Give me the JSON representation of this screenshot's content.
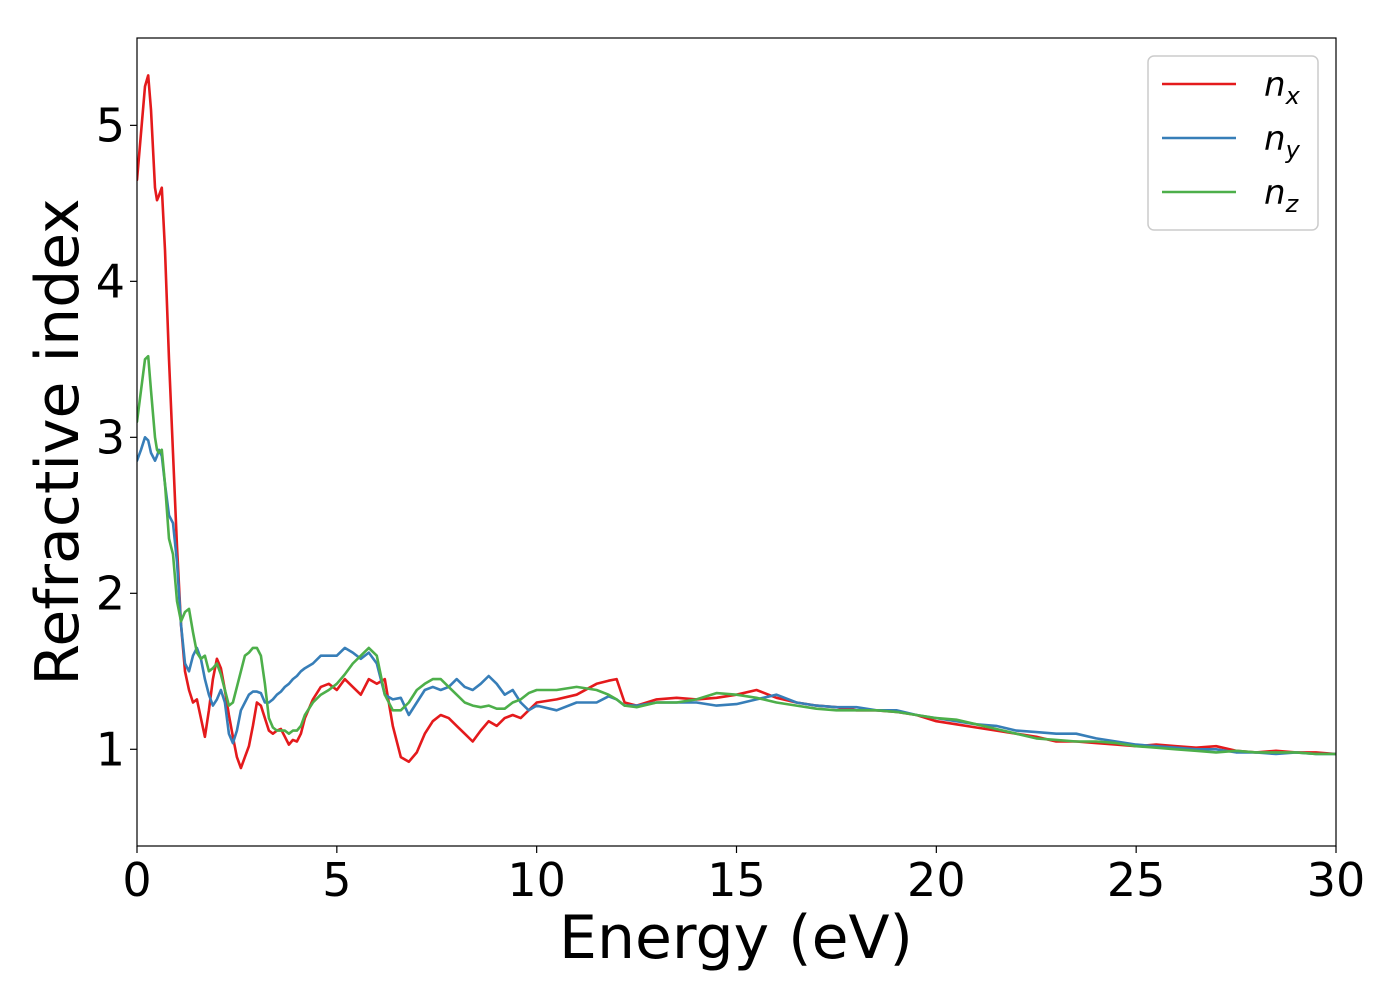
{
  "chart_data": {
    "type": "line",
    "title": "",
    "xlabel": "Energy (eV)",
    "ylabel": "Refractive index",
    "xlim": [
      0,
      30
    ],
    "ylim": [
      0.38,
      5.56
    ],
    "xticks": [
      0,
      5,
      10,
      15,
      20,
      25,
      30
    ],
    "yticks": [
      1,
      2,
      3,
      4,
      5
    ],
    "grid": false,
    "legend_position": "top-right",
    "series": [
      {
        "name": "n",
        "subscript": "x",
        "color": "#e41a1c",
        "x": [
          0,
          0.1,
          0.2,
          0.28,
          0.35,
          0.45,
          0.5,
          0.55,
          0.62,
          0.7,
          0.8,
          0.9,
          1.0,
          1.1,
          1.2,
          1.3,
          1.4,
          1.5,
          1.6,
          1.7,
          1.8,
          1.9,
          2.0,
          2.1,
          2.2,
          2.3,
          2.4,
          2.5,
          2.6,
          2.7,
          2.8,
          2.9,
          3.0,
          3.1,
          3.2,
          3.3,
          3.4,
          3.5,
          3.6,
          3.7,
          3.8,
          3.9,
          4.0,
          4.1,
          4.2,
          4.4,
          4.6,
          4.8,
          5.0,
          5.2,
          5.4,
          5.6,
          5.8,
          6.0,
          6.2,
          6.4,
          6.6,
          6.8,
          7.0,
          7.2,
          7.4,
          7.6,
          7.8,
          8.0,
          8.2,
          8.4,
          8.6,
          8.8,
          9.0,
          9.2,
          9.4,
          9.6,
          9.8,
          10.0,
          10.5,
          11.0,
          11.5,
          11.8,
          12.0,
          12.2,
          12.5,
          13.0,
          13.5,
          14.0,
          14.5,
          15.0,
          15.5,
          16.0,
          16.5,
          17.0,
          17.5,
          18.0,
          18.5,
          19.0,
          19.5,
          20.0,
          20.5,
          21.0,
          21.5,
          22.0,
          22.5,
          23.0,
          23.5,
          24.0,
          24.5,
          25.0,
          25.5,
          26.0,
          26.5,
          27.0,
          27.5,
          28.0,
          28.5,
          29.0,
          29.5,
          30.0
        ],
        "y": [
          4.65,
          4.95,
          5.25,
          5.32,
          5.1,
          4.6,
          4.52,
          4.55,
          4.6,
          4.2,
          3.5,
          2.9,
          2.3,
          1.8,
          1.5,
          1.38,
          1.3,
          1.32,
          1.2,
          1.08,
          1.25,
          1.45,
          1.58,
          1.52,
          1.38,
          1.22,
          1.08,
          0.95,
          0.88,
          0.95,
          1.02,
          1.15,
          1.3,
          1.28,
          1.2,
          1.12,
          1.1,
          1.12,
          1.13,
          1.08,
          1.03,
          1.06,
          1.05,
          1.1,
          1.2,
          1.32,
          1.4,
          1.42,
          1.38,
          1.45,
          1.4,
          1.35,
          1.45,
          1.42,
          1.45,
          1.15,
          0.95,
          0.92,
          0.98,
          1.1,
          1.18,
          1.22,
          1.2,
          1.15,
          1.1,
          1.05,
          1.12,
          1.18,
          1.15,
          1.2,
          1.22,
          1.2,
          1.25,
          1.3,
          1.32,
          1.35,
          1.42,
          1.44,
          1.45,
          1.3,
          1.28,
          1.32,
          1.33,
          1.32,
          1.33,
          1.35,
          1.38,
          1.33,
          1.3,
          1.28,
          1.27,
          1.25,
          1.25,
          1.24,
          1.22,
          1.18,
          1.16,
          1.14,
          1.12,
          1.1,
          1.08,
          1.05,
          1.05,
          1.04,
          1.03,
          1.02,
          1.03,
          1.02,
          1.01,
          1.02,
          0.99,
          0.98,
          0.99,
          0.98,
          0.98,
          0.97
        ]
      },
      {
        "name": "n",
        "subscript": "y",
        "color": "#377eb8",
        "x": [
          0,
          0.1,
          0.2,
          0.28,
          0.35,
          0.45,
          0.5,
          0.55,
          0.62,
          0.7,
          0.8,
          0.9,
          1.0,
          1.1,
          1.2,
          1.3,
          1.4,
          1.5,
          1.6,
          1.7,
          1.8,
          1.9,
          2.0,
          2.1,
          2.2,
          2.3,
          2.4,
          2.5,
          2.6,
          2.7,
          2.8,
          2.9,
          3.0,
          3.1,
          3.2,
          3.3,
          3.4,
          3.5,
          3.6,
          3.7,
          3.8,
          3.9,
          4.0,
          4.1,
          4.2,
          4.4,
          4.6,
          4.8,
          5.0,
          5.2,
          5.4,
          5.6,
          5.8,
          6.0,
          6.2,
          6.4,
          6.6,
          6.8,
          7.0,
          7.2,
          7.4,
          7.6,
          7.8,
          8.0,
          8.2,
          8.4,
          8.6,
          8.8,
          9.0,
          9.2,
          9.4,
          9.6,
          9.8,
          10.0,
          10.5,
          11.0,
          11.5,
          11.8,
          12.0,
          12.2,
          12.5,
          13.0,
          13.5,
          14.0,
          14.5,
          15.0,
          15.5,
          16.0,
          16.5,
          17.0,
          17.5,
          18.0,
          18.5,
          19.0,
          19.5,
          20.0,
          20.5,
          21.0,
          21.5,
          22.0,
          22.5,
          23.0,
          23.5,
          24.0,
          24.5,
          25.0,
          25.5,
          26.0,
          26.5,
          27.0,
          27.5,
          28.0,
          28.5,
          29.0,
          29.5,
          30.0
        ],
        "y": [
          2.85,
          2.92,
          3.0,
          2.98,
          2.9,
          2.85,
          2.88,
          2.92,
          2.88,
          2.7,
          2.5,
          2.45,
          2.2,
          1.8,
          1.55,
          1.5,
          1.6,
          1.65,
          1.58,
          1.45,
          1.35,
          1.28,
          1.32,
          1.38,
          1.3,
          1.1,
          1.04,
          1.12,
          1.25,
          1.3,
          1.35,
          1.37,
          1.37,
          1.36,
          1.3,
          1.3,
          1.32,
          1.35,
          1.37,
          1.4,
          1.42,
          1.45,
          1.47,
          1.5,
          1.52,
          1.55,
          1.6,
          1.6,
          1.6,
          1.65,
          1.62,
          1.58,
          1.62,
          1.55,
          1.35,
          1.32,
          1.33,
          1.22,
          1.3,
          1.38,
          1.4,
          1.38,
          1.4,
          1.45,
          1.4,
          1.38,
          1.42,
          1.47,
          1.42,
          1.35,
          1.38,
          1.3,
          1.25,
          1.28,
          1.25,
          1.3,
          1.3,
          1.34,
          1.32,
          1.28,
          1.28,
          1.3,
          1.3,
          1.3,
          1.28,
          1.29,
          1.32,
          1.35,
          1.3,
          1.28,
          1.27,
          1.27,
          1.25,
          1.25,
          1.22,
          1.2,
          1.18,
          1.16,
          1.15,
          1.12,
          1.11,
          1.1,
          1.1,
          1.07,
          1.05,
          1.03,
          1.02,
          1.01,
          1.0,
          1.0,
          0.98,
          0.98,
          0.97,
          0.98,
          0.97,
          0.97
        ]
      },
      {
        "name": "n",
        "subscript": "z",
        "color": "#4daf4a",
        "x": [
          0,
          0.1,
          0.2,
          0.28,
          0.35,
          0.45,
          0.5,
          0.55,
          0.62,
          0.7,
          0.8,
          0.9,
          1.0,
          1.1,
          1.2,
          1.3,
          1.4,
          1.5,
          1.6,
          1.7,
          1.8,
          1.9,
          2.0,
          2.1,
          2.2,
          2.3,
          2.4,
          2.5,
          2.6,
          2.7,
          2.8,
          2.9,
          3.0,
          3.1,
          3.2,
          3.3,
          3.4,
          3.5,
          3.6,
          3.7,
          3.8,
          3.9,
          4.0,
          4.1,
          4.2,
          4.4,
          4.6,
          4.8,
          5.0,
          5.2,
          5.4,
          5.6,
          5.8,
          6.0,
          6.2,
          6.4,
          6.6,
          6.8,
          7.0,
          7.2,
          7.4,
          7.6,
          7.8,
          8.0,
          8.2,
          8.4,
          8.6,
          8.8,
          9.0,
          9.2,
          9.4,
          9.6,
          9.8,
          10.0,
          10.5,
          11.0,
          11.5,
          11.8,
          12.0,
          12.2,
          12.5,
          13.0,
          13.5,
          14.0,
          14.5,
          15.0,
          15.5,
          16.0,
          16.5,
          17.0,
          17.5,
          18.0,
          18.5,
          19.0,
          19.5,
          20.0,
          20.5,
          21.0,
          21.5,
          22.0,
          22.5,
          23.0,
          23.5,
          24.0,
          24.5,
          25.0,
          25.5,
          26.0,
          26.5,
          27.0,
          27.5,
          28.0,
          28.5,
          29.0,
          29.5,
          30.0
        ],
        "y": [
          3.1,
          3.3,
          3.5,
          3.52,
          3.3,
          3.0,
          2.92,
          2.9,
          2.92,
          2.7,
          2.35,
          2.25,
          1.95,
          1.82,
          1.88,
          1.9,
          1.75,
          1.62,
          1.58,
          1.6,
          1.5,
          1.52,
          1.55,
          1.48,
          1.38,
          1.28,
          1.3,
          1.4,
          1.5,
          1.6,
          1.62,
          1.65,
          1.65,
          1.6,
          1.42,
          1.2,
          1.14,
          1.12,
          1.12,
          1.12,
          1.1,
          1.12,
          1.12,
          1.15,
          1.22,
          1.3,
          1.35,
          1.38,
          1.42,
          1.48,
          1.55,
          1.6,
          1.65,
          1.6,
          1.35,
          1.25,
          1.25,
          1.3,
          1.38,
          1.42,
          1.45,
          1.45,
          1.4,
          1.35,
          1.3,
          1.28,
          1.27,
          1.28,
          1.26,
          1.26,
          1.3,
          1.32,
          1.36,
          1.38,
          1.38,
          1.4,
          1.38,
          1.35,
          1.32,
          1.28,
          1.27,
          1.3,
          1.3,
          1.32,
          1.36,
          1.35,
          1.33,
          1.3,
          1.28,
          1.26,
          1.25,
          1.25,
          1.25,
          1.24,
          1.22,
          1.2,
          1.19,
          1.16,
          1.13,
          1.1,
          1.07,
          1.06,
          1.05,
          1.05,
          1.04,
          1.02,
          1.01,
          1.0,
          0.99,
          0.98,
          0.99,
          0.98,
          0.98,
          0.98,
          0.97,
          0.97
        ]
      }
    ]
  }
}
